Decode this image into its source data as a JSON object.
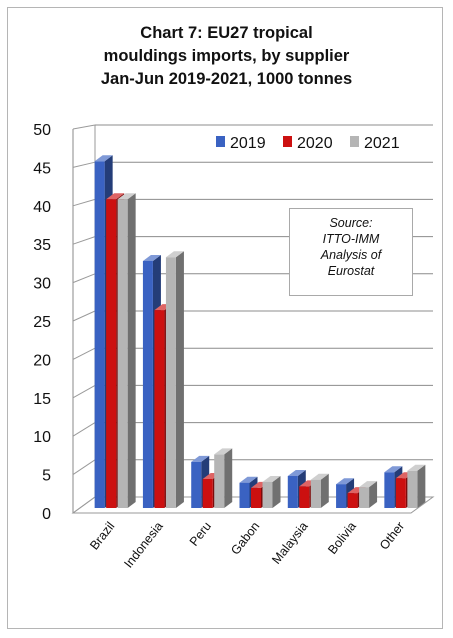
{
  "chart_data": {
    "type": "bar",
    "title_lines": [
      "Chart 7: EU27 tropical",
      "mouldings imports, by supplier",
      "Jan-Jun 2019-2021, 1000 tonnes"
    ],
    "categories": [
      "Brazil",
      "Indonesia",
      "Peru",
      "Gabon",
      "Malaysia",
      "Bolivia",
      "Other"
    ],
    "series": [
      {
        "name": "2019",
        "color": "#3a62c2",
        "values": [
          46.6,
          33.2,
          6.2,
          3.4,
          4.3,
          3.2,
          4.8
        ]
      },
      {
        "name": "2020",
        "color": "#cc1010",
        "values": [
          41.5,
          26.6,
          3.9,
          2.7,
          2.9,
          2.0,
          4.0
        ]
      },
      {
        "name": "2021",
        "color": "#b5b5b5",
        "values": [
          41.5,
          33.7,
          7.2,
          3.5,
          3.8,
          2.8,
          5.0
        ]
      }
    ],
    "ylim": [
      0,
      50
    ],
    "yticks": [
      0,
      5,
      10,
      15,
      20,
      25,
      30,
      35,
      40,
      45,
      50
    ],
    "legend_position": "top-right",
    "grid": true,
    "annotation_lines": [
      "Source:",
      "ITTO-IMM",
      "Analysis of",
      "Eurostat"
    ]
  }
}
